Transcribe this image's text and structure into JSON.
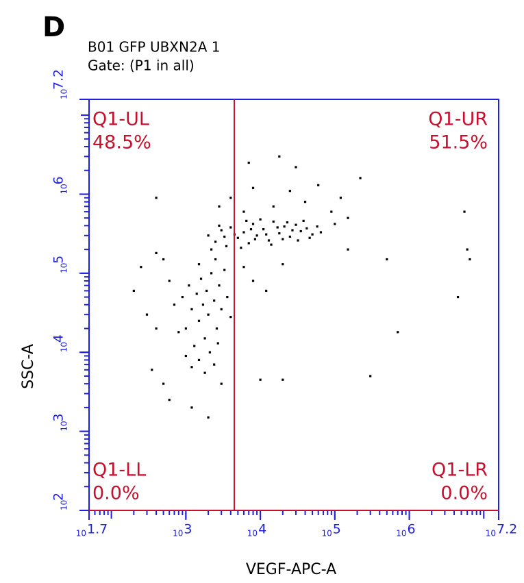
{
  "chart_data": {
    "type": "scatter",
    "panel_label": "D",
    "title": "B01 GFP UBXN2A 1",
    "subtitle": "Gate: (P1 in all)",
    "x_label": "VEGF-APC-A",
    "y_label": "SSC-A",
    "xscale": "log",
    "yscale": "log",
    "xlim": [
      50.12,
      15848932
    ],
    "ylim": [
      100,
      15848932
    ],
    "xticks": [
      {
        "value": 50.12,
        "label": "10",
        "exponent": "1.7"
      },
      {
        "value": 1000,
        "label": "10",
        "exponent": "3"
      },
      {
        "value": 10000,
        "label": "10",
        "exponent": "4"
      },
      {
        "value": 100000,
        "label": "10",
        "exponent": "5"
      },
      {
        "value": 1000000,
        "label": "10",
        "exponent": "6"
      },
      {
        "value": 15848932,
        "label": "10",
        "exponent": "7.2"
      }
    ],
    "yticks": [
      {
        "value": 100,
        "label": "10",
        "exponent": "2"
      },
      {
        "value": 1000,
        "label": "10",
        "exponent": "3"
      },
      {
        "value": 10000,
        "label": "10",
        "exponent": "4"
      },
      {
        "value": 100000,
        "label": "10",
        "exponent": "5"
      },
      {
        "value": 1000000,
        "label": "10",
        "exponent": "6"
      },
      {
        "value": 15848932,
        "label": "10",
        "exponent": "7.2"
      }
    ],
    "gate_x": 4467,
    "gate_y": 100,
    "axis_color": "#1f1fe0",
    "gate_color": "#c8102e",
    "point_color": "#000000",
    "quadrants": [
      {
        "name": "Q1-UL",
        "percent": 48.5,
        "percent_label": "48.5%",
        "corner": "top-left"
      },
      {
        "name": "Q1-UR",
        "percent": 51.5,
        "percent_label": "51.5%",
        "corner": "top-right"
      },
      {
        "name": "Q1-LL",
        "percent": 0.0,
        "percent_label": "0.0%",
        "corner": "bottom-left"
      },
      {
        "name": "Q1-LR",
        "percent": 0.0,
        "percent_label": "0.0%",
        "corner": "bottom-right"
      }
    ],
    "x": [
      2000.0,
      2500.0,
      3000.0,
      3500.0,
      4000.0,
      5000.0,
      6000.0,
      7000.0,
      8000.0,
      9000.0,
      11000.0,
      13000.0,
      15000.0,
      18000.0,
      21000.0,
      25000.0,
      30000.0,
      35000.0,
      42000.0,
      50000.0,
      2200.0,
      2800.0,
      3300.0,
      4500.0,
      5500.0,
      6500.0,
      7500.0,
      8500.0,
      10000.0,
      12000.0,
      14000.0,
      17000.0,
      20000.0,
      23000.0,
      27000.0,
      32000.0,
      38000.0,
      46000.0,
      58000.0,
      65000.0,
      900.0,
      1000.0,
      1100.0,
      1200.0,
      1300.0,
      1400.0,
      1500.0,
      1600.0,
      1700.0,
      1800.0,
      1900.0,
      2000.0,
      2200.0,
      2400.0,
      2600.0,
      2800.0,
      3000.0,
      3300.0,
      3600.0,
      4000.0,
      1000.0,
      1200.0,
      1500.0,
      1800.0,
      2100.0,
      2400.0,
      2700.0,
      800.0,
      700.0,
      600.0,
      250.0,
      300.0,
      400.0,
      350.0,
      500.0,
      600.0,
      1200.0,
      2000.0,
      3000.0,
      500.0,
      1500.0,
      2500.0,
      6000.0,
      8000.0,
      12000.0,
      20000.0,
      4000.0,
      8000.0,
      15000.0,
      25000.0,
      40000.0,
      60000.0,
      90000.0,
      120000.0,
      150000.0,
      30000.0,
      7000.0,
      18000.0,
      220000.0,
      500000.0,
      700000.0,
      300000.0,
      10000.0,
      20000.0,
      150000.0,
      100000.0,
      6000.0,
      2800.0,
      400.0,
      6000000.0,
      6500000.0,
      4500000.0,
      5500000.0,
      400.0,
      200.0
    ],
    "y": [
      300000.0,
      250000.0,
      350000.0,
      220000.0,
      380000.0,
      280000.0,
      330000.0,
      240000.0,
      420000.0,
      300000.0,
      360000.0,
      260000.0,
      450000.0,
      320000.0,
      390000.0,
      290000.0,
      410000.0,
      340000.0,
      370000.0,
      310000.0,
      200000.0,
      400000.0,
      290000.0,
      310000.0,
      210000.0,
      460000.0,
      360000.0,
      270000.0,
      480000.0,
      310000.0,
      230000.0,
      380000.0,
      270000.0,
      440000.0,
      350000.0,
      260000.0,
      460000.0,
      280000.0,
      390000.0,
      330000.0,
      50000.0,
      20000.0,
      70000.0,
      35000.0,
      12000.0,
      55000.0,
      25000.0,
      85000.0,
      40000.0,
      15000.0,
      60000.0,
      30000.0,
      100000.0,
      45000.0,
      20000.0,
      70000.0,
      35000.0,
      110000.0,
      50000.0,
      28000.0,
      9000.0,
      6500.0,
      8000.0,
      5500.0,
      10000.0,
      7000.0,
      13000.0,
      18000.0,
      40000.0,
      80000.0,
      120000.0,
      30000.0,
      180000.0,
      6000.0,
      4000.0,
      2500.0,
      2000.0,
      1500.0,
      4000.0,
      150000.0,
      130000.0,
      150000.0,
      120000.0,
      80000.0,
      60000.0,
      130000.0,
      900000.0,
      1200000.0,
      700000.0,
      1100000.0,
      800000.0,
      1300000.0,
      600000.0,
      900000.0,
      500000.0,
      2200000.0,
      2500000.0,
      3000000.0,
      1600000.0,
      150000.0,
      18000.0,
      5000.0,
      4500.0,
      4500.0,
      200000.0,
      420000.0,
      600000.0,
      700000.0,
      900000.0,
      200000.0,
      150000.0,
      50000.0,
      600000.0,
      20000.0,
      60000.0
    ]
  }
}
